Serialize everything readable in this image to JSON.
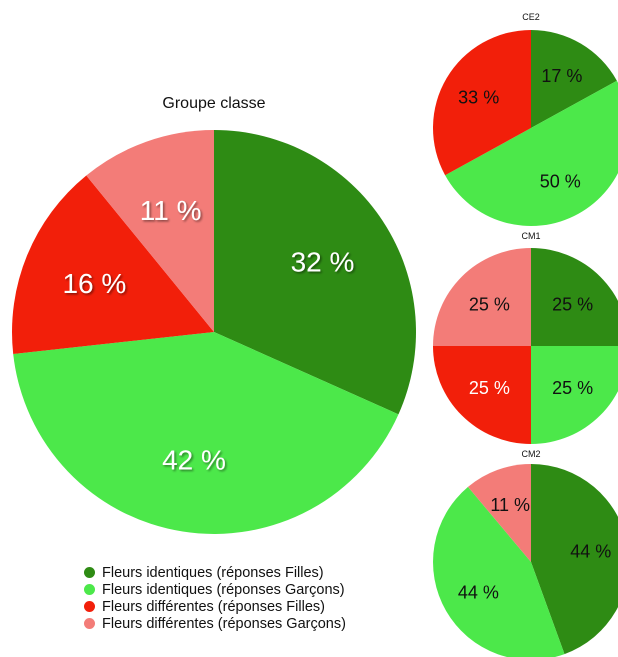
{
  "colors": {
    "filles_identiques": "#2e8b14",
    "garcons_identiques": "#4ce84a",
    "filles_differentes": "#f21f0a",
    "garcons_differentes": "#f37c78"
  },
  "chart_data": [
    {
      "type": "pie",
      "title": "Groupe classe",
      "categories": [
        "Fleurs identiques (réponses Filles)",
        "Fleurs identiques (réponses Garçons)",
        "Fleurs différentes (réponses Filles)",
        "Fleurs différentes (réponses Garçons)"
      ],
      "values": [
        32,
        42,
        16,
        11
      ],
      "labels": [
        "32 %",
        "42 %",
        "16 %",
        "11 %"
      ]
    },
    {
      "type": "pie",
      "title": "CE2",
      "categories": [
        "Fleurs identiques (réponses Filles)",
        "Fleurs identiques (réponses Garçons)",
        "Fleurs différentes (réponses Filles)",
        "Fleurs différentes (réponses Garçons)"
      ],
      "values": [
        17,
        50,
        33,
        0
      ],
      "labels": [
        "17 %",
        "50 %",
        "33 %",
        ""
      ]
    },
    {
      "type": "pie",
      "title": "CM1",
      "categories": [
        "Fleurs identiques (réponses Filles)",
        "Fleurs identiques (réponses Garçons)",
        "Fleurs différentes (réponses Filles)",
        "Fleurs différentes (réponses Garçons)"
      ],
      "values": [
        25,
        25,
        25,
        25
      ],
      "labels": [
        "25 %",
        "25 %",
        "25 %",
        "25 %"
      ]
    },
    {
      "type": "pie",
      "title": "CM2",
      "categories": [
        "Fleurs identiques (réponses Filles)",
        "Fleurs identiques (réponses Garçons)",
        "Fleurs différentes (réponses Filles)",
        "Fleurs différentes (réponses Garçons)"
      ],
      "values": [
        44,
        44,
        0,
        11
      ],
      "labels": [
        "44 %",
        "44 %",
        "",
        "11 %"
      ]
    }
  ],
  "legend": [
    {
      "label": "Fleurs identiques (réponses Filles)",
      "color": "#2e8b14"
    },
    {
      "label": "Fleurs identiques (réponses Garçons)",
      "color": "#4ce84a"
    },
    {
      "label": "Fleurs différentes (réponses Filles)",
      "color": "#f21f0a"
    },
    {
      "label": "Fleurs différentes (réponses Garçons)",
      "color": "#f37c78"
    }
  ]
}
